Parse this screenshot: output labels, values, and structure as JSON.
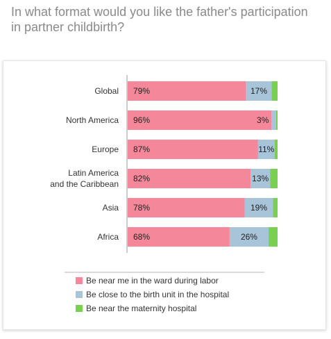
{
  "question": "In what format would you like the father's participation in partner childbirth?",
  "chart_data": {
    "type": "bar",
    "orientation": "horizontal",
    "stacked": true,
    "categories": [
      "Global",
      "North America",
      "Europe",
      "Latin America and the Caribbean",
      "Asia",
      "Africa"
    ],
    "series": [
      {
        "name": "Be near me in the ward during labor",
        "color": "#f4889a",
        "values": [
          79,
          96,
          87,
          82,
          78,
          68
        ],
        "labels": [
          "79%",
          "96%",
          "87%",
          "82%",
          "78%",
          "68%"
        ]
      },
      {
        "name": "Be close to the birth unit in the hospital",
        "color": "#a8c4d8",
        "values": [
          17,
          3,
          11,
          13,
          19,
          26
        ],
        "labels": [
          "17%",
          "3%",
          "11%",
          "13%",
          "19%",
          "26%"
        ]
      },
      {
        "name": "Be near the maternity hospital",
        "color": "#79cf52",
        "values": [
          4,
          1,
          2,
          5,
          3,
          6
        ],
        "labels": []
      }
    ],
    "xlim": [
      0,
      100
    ],
    "grid": false,
    "legend_position": "bottom"
  }
}
